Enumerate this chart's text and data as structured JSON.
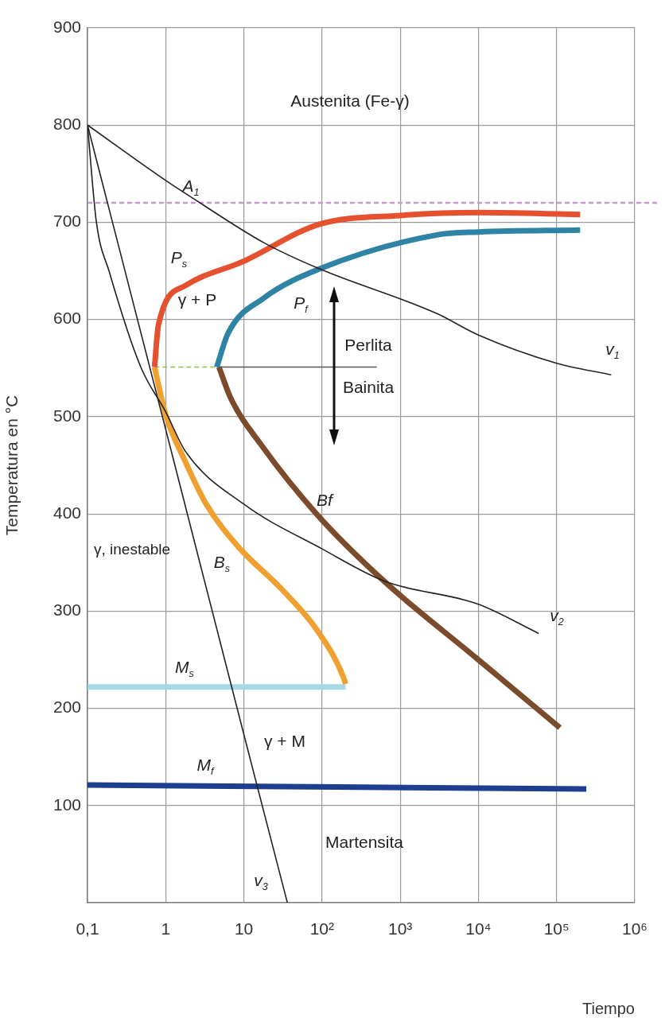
{
  "chart_data": {
    "type": "line",
    "xlabel": "Tiempo",
    "ylabel": "Temperatura en °C",
    "log": "x",
    "grid": true,
    "marker": "none",
    "xlim": [
      0.1,
      1000000
    ],
    "ylim": [
      0,
      900
    ],
    "xticks": [
      {
        "value": 0.1,
        "label": "0,1"
      },
      1,
      10,
      {
        "value": 100,
        "label": "10²"
      },
      {
        "value": 1000,
        "label": "10³"
      },
      {
        "value": 10000,
        "label": "10⁴"
      },
      {
        "value": 100000,
        "label": "10⁵"
      },
      {
        "value": 1000000,
        "label": "10⁶"
      }
    ],
    "yticks": [
      100,
      200,
      300,
      400,
      500,
      600,
      700,
      800,
      900
    ],
    "series": [
      {
        "name": "P$_{s}$",
        "color": "#e5502e",
        "x": [
          200000,
          10000,
          1000,
          93,
          10,
          1.8,
          0.81,
          0.72
        ],
        "values": [
          708,
          710,
          707,
          698,
          660,
          635,
          595,
          551
        ]
      },
      {
        "name": "P$_{f}$",
        "color": "#2f84a6",
        "x": [
          200000,
          10000,
          2950,
          93,
          18,
          6.3,
          4.5
        ],
        "values": [
          692,
          690,
          687,
          652,
          622,
          586,
          551
        ]
      },
      {
        "name": "B$_{s}$",
        "color": "#f0a030",
        "x": [
          0.72,
          1,
          1.8,
          3.3,
          8.5,
          30,
          87,
          190,
          200
        ],
        "values": [
          551,
          502,
          453,
          410,
          366,
          323,
          280,
          231,
          225
        ]
      },
      {
        "name": "Bf",
        "color": "#7b4b2b",
        "x": [
          4.8,
          6.8,
          17,
          87,
          617,
          9300,
          110000
        ],
        "values": [
          551,
          519,
          470,
          399,
          331,
          252,
          180
        ]
      },
      {
        "name": "M$_{s}$",
        "color": "#a6d8e6",
        "x": [
          0.1,
          200
        ],
        "values": [
          222,
          222
        ]
      },
      {
        "name": "M$_{f}$",
        "color": "#1e3f8f",
        "x": [
          0.1,
          240000
        ],
        "values": [
          121,
          117
        ]
      },
      {
        "color": "#8cc43c",
        "line_style": "dashed",
        "x": [
          0.72,
          4.8
        ],
        "values": [
          551,
          551
        ]
      },
      {
        "color": "#555555",
        "x": [
          4.8,
          500
        ],
        "values": [
          551,
          551
        ]
      },
      {
        "name": "v$_{1}$",
        "color": "#222222",
        "x": [
          0.1,
          1,
          2.2,
          18,
          93,
          2950,
          10000,
          100000,
          500000
        ],
        "values": [
          800,
          743,
          725,
          679,
          652,
          606,
          584,
          555,
          543
        ]
      },
      {
        "name": "v$_{2}$",
        "color": "#222222",
        "x": [
          0.1,
          0.13,
          0.19,
          0.48,
          1,
          1.8,
          10,
          100,
          620,
          10000,
          59000
        ],
        "values": [
          800,
          700,
          649,
          551,
          505,
          464,
          410,
          364,
          331,
          307,
          277
        ]
      },
      {
        "name": "v$_{3}$",
        "color": "#222222",
        "x": [
          0.1,
          1,
          10,
          36
        ],
        "values": [
          800,
          487,
          173,
          0
        ]
      }
    ],
    "ref_lines": [
      {
        "axis": "y",
        "value": 720,
        "color": "#c49ad0",
        "line_style": "dashed",
        "label": "A$_{1}$"
      }
    ],
    "annotations": [
      "Austenita (Fe-γ)",
      "γ + P",
      "Perlita",
      "Bainita",
      "γ, inestable",
      "γ + M",
      "Martensita"
    ]
  }
}
